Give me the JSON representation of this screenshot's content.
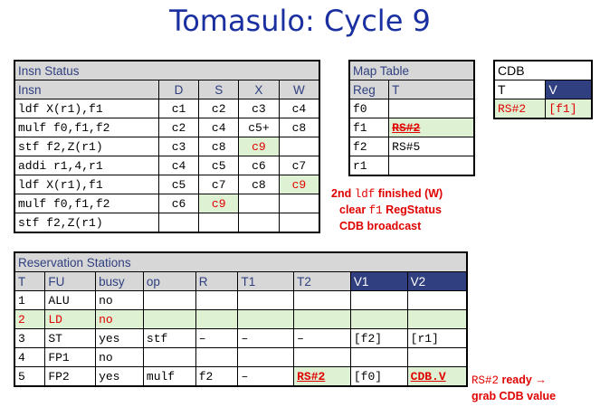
{
  "title": "Tomasulo: Cycle 9",
  "insn_status": {
    "caption": "Insn Status",
    "headers": [
      "Insn",
      "D",
      "S",
      "X",
      "W"
    ],
    "rows": [
      [
        "ldf X(r1),f1",
        "c1",
        "c2",
        "c3",
        "c4"
      ],
      [
        "mulf f0,f1,f2",
        "c2",
        "c4",
        "c5+",
        "c8"
      ],
      [
        "stf f2,Z(r1)",
        "c3",
        "c8",
        "c9",
        ""
      ],
      [
        "addi r1,4,r1",
        "c4",
        "c5",
        "c6",
        "c7"
      ],
      [
        "ldf X(r1),f1",
        "c5",
        "c7",
        "c8",
        "c9"
      ],
      [
        "mulf f0,f1,f2",
        "c6",
        "c9",
        "",
        ""
      ],
      [
        "stf f2,Z(r1)",
        "",
        "",
        "",
        ""
      ]
    ]
  },
  "map_table": {
    "caption": "Map Table",
    "headers": [
      "Reg",
      "T"
    ],
    "rows": [
      [
        "f0",
        ""
      ],
      [
        "f1",
        "RS#2"
      ],
      [
        "f2",
        "RS#5"
      ],
      [
        "r1",
        ""
      ]
    ]
  },
  "cdb": {
    "caption": "CDB",
    "headers": [
      "T",
      "V"
    ],
    "row": [
      "RS#2",
      "[f1]"
    ]
  },
  "note1": {
    "line1": "2nd ",
    "line1_code": "ldf",
    "line1_tail": " finished (W)",
    "line2": "clear ",
    "line2_code": "f1",
    "line2_tail": " RegStatus",
    "line3": "CDB broadcast"
  },
  "reservation_stations": {
    "caption": "Reservation Stations",
    "headers": [
      "T",
      "FU",
      "busy",
      "op",
      "R",
      "T1",
      "T2",
      "V1",
      "V2"
    ],
    "rows": [
      [
        "1",
        "ALU",
        "no",
        "",
        "",
        "",
        "",
        "",
        ""
      ],
      [
        "2",
        "LD",
        "no",
        "",
        "",
        "",
        "",
        "",
        ""
      ],
      [
        "3",
        "ST",
        "yes",
        "stf",
        "–",
        "–",
        "–",
        "[f2]",
        "[r1]"
      ],
      [
        "4",
        "FP1",
        "no",
        "",
        "",
        "",
        "",
        "",
        ""
      ],
      [
        "5",
        "FP2",
        "yes",
        "mulf",
        "f2",
        "–",
        "RS#2",
        "[f0]",
        "CDB.V"
      ]
    ]
  },
  "note2": {
    "code": "RS#2",
    "line1_tail": " ready →",
    "line2": "grab CDB value"
  }
}
